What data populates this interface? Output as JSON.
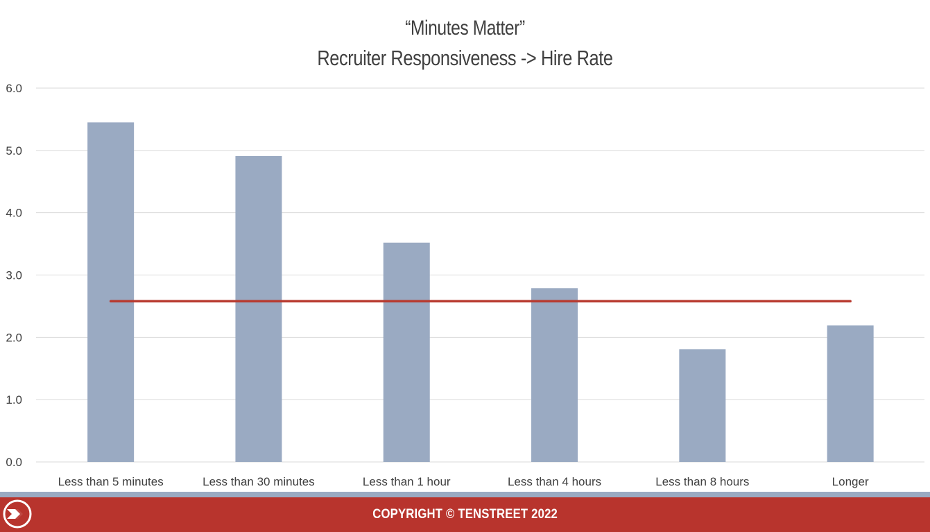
{
  "chart_data": {
    "type": "bar",
    "title": "“Minutes Matter”",
    "subtitle": "Recruiter Responsiveness -> Hire Rate",
    "categories": [
      "Less than 5 minutes",
      "Less than 30 minutes",
      "Less than 1 hour",
      "Less than 4 hours",
      "Less than 8 hours",
      "Longer"
    ],
    "values": [
      5.45,
      4.91,
      3.52,
      2.79,
      1.81,
      2.19
    ],
    "reference_line": 2.58,
    "ylim": [
      0,
      6
    ],
    "yticks": [
      "0.0",
      "1.0",
      "2.0",
      "3.0",
      "4.0",
      "5.0",
      "6.0"
    ],
    "grid": true,
    "legend": "none",
    "bar_color": "#9aaac2",
    "line_color": "#b83a2f"
  },
  "footer": {
    "text": "COPYRIGHT © TENSTREET 2022",
    "bar_color": "#b8342d",
    "stripe_color": "#9aaac2",
    "logo_icon": "tenstreet-logo-icon"
  }
}
